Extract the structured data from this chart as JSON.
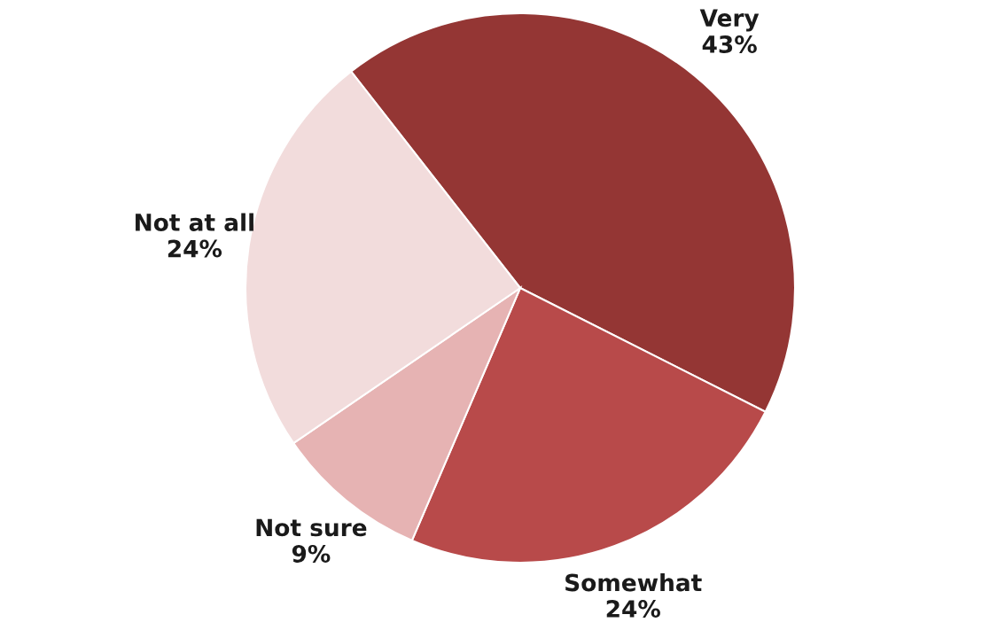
{
  "chart_data": {
    "type": "pie",
    "categories": [
      "Very",
      "Somewhat",
      "Not sure",
      "Not at all"
    ],
    "values": [
      43,
      24,
      9,
      24
    ],
    "value_labels": [
      "43%",
      "24%",
      "9%",
      "24%"
    ],
    "colors": [
      "#943634",
      "#b84a4a",
      "#e6b3b3",
      "#f2dcdc"
    ]
  }
}
